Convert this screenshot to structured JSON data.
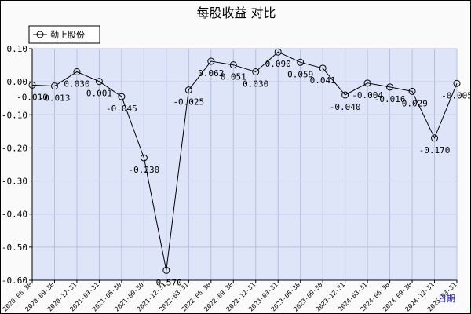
{
  "chart_data": {
    "type": "line",
    "title": "每股收益 对比",
    "xlabel": "日期",
    "ylabel": "",
    "ylim": [
      -0.6,
      0.1
    ],
    "yticks": [
      0.1,
      0.0,
      -0.1,
      -0.2,
      -0.3,
      -0.4,
      -0.5,
      -0.6
    ],
    "ytick_labels": [
      "0.10",
      "0.00",
      "-0.10",
      "-0.20",
      "-0.30",
      "-0.40",
      "-0.50",
      "-0.60"
    ],
    "grid": true,
    "legend_position": "top-left",
    "categories": [
      "2020-06-30",
      "2020-09-30",
      "2020-12-31",
      "2021-03-31",
      "2021-06-30",
      "2021-09-30",
      "2021-12-31",
      "2022-03-31",
      "2022-06-30",
      "2022-09-30",
      "2022-12-31",
      "2023-03-31",
      "2023-06-30",
      "2023-09-30",
      "2023-12-31",
      "2024-03-31",
      "2024-06-30",
      "2024-09-30",
      "2024-12-31",
      "2025-03-31"
    ],
    "series": [
      {
        "name": "勤上股份",
        "values": [
          -0.01,
          -0.013,
          0.03,
          0.001,
          -0.045,
          -0.23,
          -0.57,
          -0.025,
          0.062,
          0.051,
          0.03,
          0.09,
          0.059,
          0.041,
          -0.04,
          -0.004,
          -0.016,
          -0.029,
          -0.17,
          -0.005
        ],
        "labels": [
          "-0.010",
          "-0.013",
          "0.030",
          "0.001",
          "-0.045",
          "-0.230",
          "-0.570",
          "-0.025",
          "0.062",
          "0.051",
          "0.030",
          "0.090",
          "0.059",
          "0.041",
          "-0.040",
          "-0.004",
          "-0.016",
          "-0.029",
          "-0.170",
          "-0.005"
        ]
      }
    ]
  },
  "colors": {
    "plot_bg": "#dfe5f8",
    "grid": "#b4c0e0",
    "line": "#000000",
    "xlabel": "#1a1ac8"
  }
}
